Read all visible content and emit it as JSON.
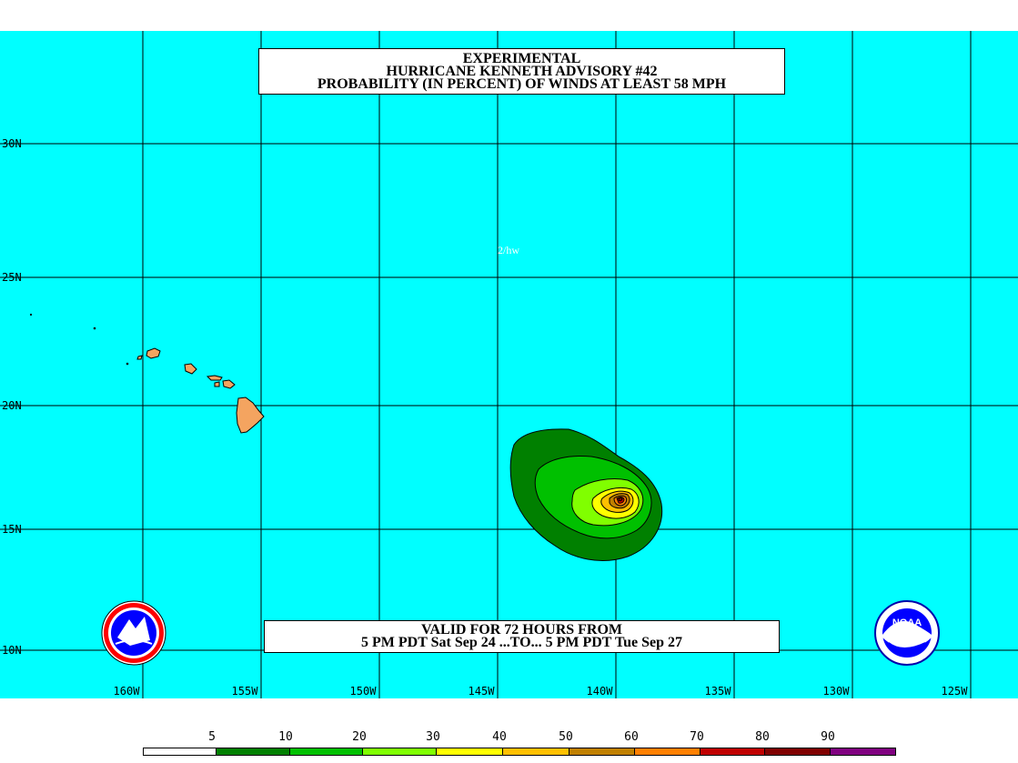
{
  "title": {
    "line1": "EXPERIMENTAL",
    "line2": "HURRICANE KENNETH ADVISORY #42",
    "line3": "PROBABILITY (IN PERCENT) OF WINDS AT LEAST 58 MPH"
  },
  "valid": {
    "line1": "VALID FOR 72 HOURS FROM",
    "line2": "5 PM PDT Sat Sep 24 ...TO... 5 PM PDT Tue Sep 27"
  },
  "credit": "2/hw",
  "latitudes": [
    "30N",
    "25N",
    "20N",
    "15N",
    "10N"
  ],
  "longitudes": [
    "160W",
    "155W",
    "150W",
    "145W",
    "140W",
    "135W",
    "130W",
    "125W"
  ],
  "legend": {
    "labels": [
      "5",
      "10",
      "20",
      "30",
      "40",
      "50",
      "60",
      "70",
      "80",
      "90"
    ],
    "colors": [
      "#ffffff",
      "#008000",
      "#00c000",
      "#80ff00",
      "#ffff00",
      "#ffc000",
      "#c08000",
      "#ff8000",
      "#c00000",
      "#800000",
      "#800080"
    ]
  },
  "colors": {
    "ocean": "#00ffff",
    "land": "#f4a460",
    "grid": "#000000"
  },
  "logos": {
    "left": "nws-logo",
    "right": "noaa-logo",
    "right_text": "NOAA"
  }
}
